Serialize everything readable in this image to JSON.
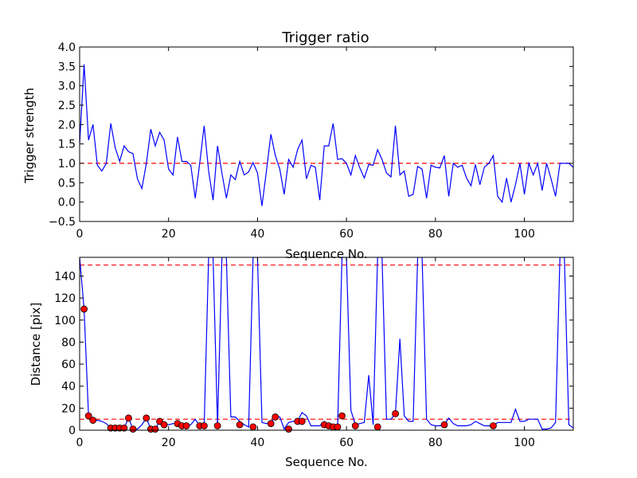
{
  "chart_data": [
    {
      "type": "line",
      "title": "Trigger ratio",
      "xlabel": "Sequence No.",
      "ylabel": "Trigger strength",
      "xlim": [
        0,
        111
      ],
      "ylim": [
        -0.5,
        4.0
      ],
      "xticks": [
        "0",
        "20",
        "40",
        "60",
        "80",
        "100"
      ],
      "yticks": [
        "−0.5",
        "0.0",
        "0.5",
        "1.0",
        "1.5",
        "2.0",
        "2.5",
        "3.0",
        "3.5",
        "4.0"
      ],
      "threshold": {
        "y": 1.0,
        "style": "dashed",
        "color": "#ff0000"
      },
      "series": [
        {
          "color": "#0000ff",
          "x": [
            0,
            1,
            2,
            3,
            4,
            5,
            6,
            7,
            8,
            9,
            10,
            11,
            12,
            13,
            14,
            15,
            16,
            17,
            18,
            19,
            20,
            21,
            22,
            23,
            24,
            25,
            26,
            27,
            28,
            29,
            30,
            31,
            32,
            33,
            34,
            35,
            36,
            37,
            38,
            39,
            40,
            41,
            42,
            43,
            44,
            45,
            46,
            47,
            48,
            49,
            50,
            51,
            52,
            53,
            54,
            55,
            56,
            57,
            58,
            59,
            60,
            61,
            62,
            63,
            64,
            65,
            66,
            67,
            68,
            69,
            70,
            71,
            72,
            73,
            74,
            75,
            76,
            77,
            78,
            79,
            80,
            81,
            82,
            83,
            84,
            85,
            86,
            87,
            88,
            89,
            90,
            91,
            92,
            93,
            94,
            95,
            96,
            97,
            98,
            99,
            100,
            101,
            102,
            103,
            104,
            105,
            106,
            107,
            108,
            109,
            110,
            111
          ],
          "y": [
            1.5,
            3.55,
            1.6,
            2.0,
            0.95,
            0.8,
            1.0,
            2.03,
            1.4,
            1.05,
            1.45,
            1.3,
            1.25,
            0.6,
            0.35,
            1.0,
            1.88,
            1.45,
            1.8,
            1.6,
            0.85,
            0.7,
            1.68,
            1.05,
            1.05,
            0.95,
            0.1,
            1.0,
            1.97,
            0.8,
            0.05,
            1.45,
            0.75,
            0.1,
            0.7,
            0.58,
            1.05,
            0.7,
            0.78,
            1.02,
            0.75,
            -0.1,
            0.8,
            1.75,
            1.2,
            0.85,
            0.2,
            1.1,
            0.9,
            1.35,
            1.6,
            0.6,
            0.95,
            0.9,
            0.05,
            1.45,
            1.45,
            2.03,
            1.1,
            1.12,
            1.0,
            0.7,
            1.2,
            0.88,
            0.62,
            0.97,
            0.95,
            1.35,
            1.1,
            0.75,
            0.65,
            1.97,
            0.7,
            0.8,
            0.15,
            0.2,
            0.92,
            0.85,
            0.1,
            0.95,
            0.9,
            0.88,
            1.2,
            0.15,
            1.0,
            0.9,
            0.95,
            0.62,
            0.42,
            0.97,
            0.45,
            0.9,
            1.0,
            1.2,
            0.15,
            0.0,
            0.62,
            0.0,
            0.45,
            1.0,
            0.2,
            1.0,
            0.7,
            1.0,
            0.3,
            1.0,
            0.6,
            0.15,
            1.0,
            1.0,
            1.0,
            0.9
          ]
        }
      ]
    },
    {
      "type": "line",
      "title": "",
      "xlabel": "Sequence No.",
      "ylabel": "Distance [pix]",
      "xlim": [
        0,
        111
      ],
      "ylim": [
        0,
        157
      ],
      "xticks": [
        "0",
        "20",
        "40",
        "60",
        "80",
        "100"
      ],
      "yticks": [
        "0",
        "20",
        "40",
        "60",
        "80",
        "100",
        "120",
        "140"
      ],
      "thresholds": [
        {
          "y": 150,
          "style": "dashed",
          "color": "#ff0000"
        },
        {
          "y": 10,
          "style": "dashed",
          "color": "#ff0000"
        }
      ],
      "series": [
        {
          "color": "#0000ff",
          "x": [
            0,
            1,
            2,
            3,
            4,
            5,
            6,
            7,
            8,
            9,
            10,
            11,
            12,
            13,
            14,
            15,
            16,
            17,
            18,
            19,
            20,
            21,
            22,
            23,
            24,
            25,
            26,
            27,
            28,
            29,
            30,
            31,
            32,
            33,
            34,
            35,
            36,
            37,
            38,
            39,
            40,
            41,
            42,
            43,
            44,
            45,
            46,
            47,
            48,
            49,
            50,
            51,
            52,
            53,
            54,
            55,
            56,
            57,
            58,
            59,
            60,
            61,
            62,
            63,
            64,
            65,
            66,
            67,
            68,
            69,
            70,
            71,
            72,
            73,
            74,
            75,
            76,
            77,
            78,
            79,
            80,
            81,
            82,
            83,
            84,
            85,
            86,
            87,
            88,
            89,
            90,
            91,
            92,
            93,
            94,
            95,
            96,
            97,
            98,
            99,
            100,
            101,
            102,
            103,
            104,
            105,
            106,
            107,
            108,
            109,
            110,
            111
          ],
          "y": [
            157,
            110,
            13,
            9,
            9,
            8,
            6,
            2,
            2,
            2,
            2,
            11,
            1,
            1,
            5,
            11,
            1,
            1,
            8,
            5,
            5,
            6,
            6,
            4,
            4,
            5,
            10,
            4,
            4,
            157,
            157,
            4,
            157,
            157,
            12,
            12,
            8,
            5,
            3,
            157,
            157,
            7,
            6,
            7,
            12,
            12,
            1,
            7,
            8,
            8,
            16,
            13,
            4,
            4,
            4,
            8,
            3,
            3,
            3,
            157,
            157,
            18,
            5,
            6,
            7,
            50,
            5,
            157,
            157,
            10,
            10,
            15,
            83,
            13,
            8,
            8,
            157,
            157,
            10,
            5,
            4,
            4,
            5,
            11,
            6,
            4,
            4,
            4,
            5,
            8,
            6,
            4,
            4,
            4,
            7,
            7,
            7,
            7,
            19,
            8,
            8,
            10,
            10,
            10,
            1,
            1,
            2,
            7,
            157,
            157,
            5,
            2
          ]
        }
      ],
      "markers": {
        "color": "#ff0000",
        "edge": "#000000",
        "x": [
          1,
          2,
          3,
          7,
          8,
          9,
          10,
          11,
          12,
          15,
          16,
          17,
          18,
          19,
          22,
          23,
          24,
          27,
          28,
          31,
          36,
          39,
          43,
          44,
          47,
          49,
          50,
          55,
          56,
          57,
          58,
          59,
          62,
          67,
          71,
          82,
          93
        ],
        "y": [
          110,
          13,
          9,
          2,
          2,
          2,
          2,
          11,
          1,
          11,
          1,
          1,
          8,
          5,
          6,
          4,
          4,
          4,
          4,
          4,
          5,
          3,
          6,
          12,
          1,
          8,
          8,
          5,
          4,
          3,
          3,
          13,
          4,
          3,
          15,
          5,
          4
        ]
      }
    }
  ]
}
